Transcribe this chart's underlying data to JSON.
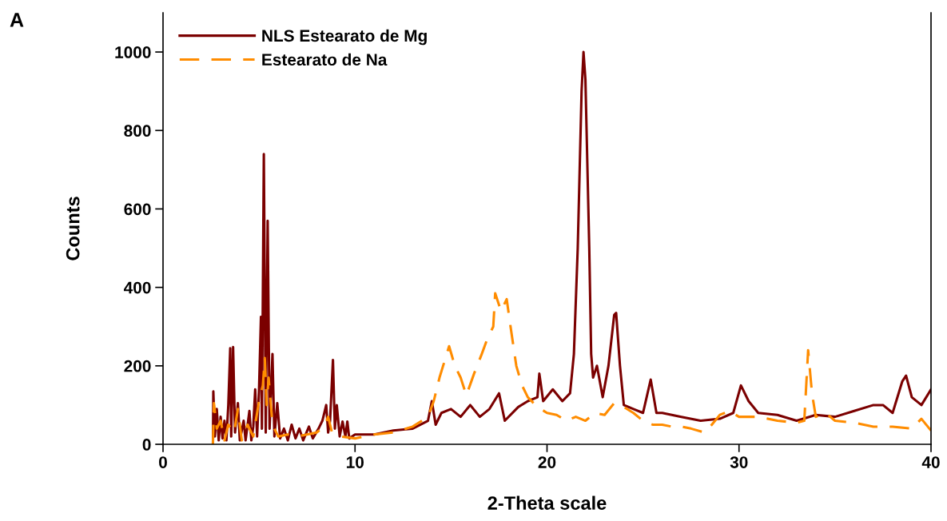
{
  "chart_data": {
    "type": "line",
    "xlabel": "2-Theta scale",
    "ylabel": "Counts",
    "annotations": [
      "A"
    ],
    "xlim": [
      0,
      40
    ],
    "xticks": [
      0,
      10,
      20,
      30,
      40
    ],
    "ylim": [
      0,
      1100
    ],
    "yticks": [
      0,
      200,
      400,
      600,
      800,
      1000
    ],
    "grid": false,
    "legend": "top left",
    "marker": "none",
    "series": [
      {
        "name": "NLS Estearato de Mg",
        "color": "#7b0000",
        "line_style": "solid",
        "x": [
          2.6,
          2.62,
          2.7,
          2.8,
          2.9,
          3.0,
          3.1,
          3.2,
          3.3,
          3.4,
          3.5,
          3.55,
          3.65,
          3.75,
          3.9,
          4.0,
          4.2,
          4.3,
          4.5,
          4.6,
          4.7,
          4.8,
          4.9,
          5.0,
          5.1,
          5.15,
          5.25,
          5.35,
          5.45,
          5.55,
          5.7,
          5.8,
          5.95,
          6.1,
          6.3,
          6.5,
          6.7,
          6.9,
          7.1,
          7.3,
          7.6,
          7.8,
          8.1,
          8.3,
          8.5,
          8.6,
          8.7,
          8.85,
          8.95,
          9.05,
          9.2,
          9.35,
          9.5,
          9.6,
          9.7,
          10,
          11,
          12,
          13,
          13.8,
          14.0,
          14.2,
          14.5,
          15,
          15.5,
          16,
          16.5,
          17,
          17.5,
          17.8,
          18.5,
          19.0,
          19.5,
          19.6,
          19.8,
          20.3,
          20.8,
          21.2,
          21.4,
          21.6,
          21.8,
          21.9,
          22.0,
          22.2,
          22.3,
          22.4,
          22.6,
          22.9,
          23.2,
          23.5,
          23.6,
          23.8,
          24.0,
          24.5,
          25.0,
          25.4,
          25.7,
          26,
          27,
          28,
          29,
          29.7,
          30.1,
          30.5,
          31,
          32,
          33,
          34,
          35,
          36,
          37,
          37.5,
          38.0,
          38.5,
          38.7,
          39,
          39.5,
          40
        ],
        "values": [
          0,
          135,
          20,
          90,
          10,
          70,
          15,
          60,
          10,
          100,
          245,
          20,
          248,
          30,
          105,
          10,
          60,
          10,
          85,
          10,
          45,
          140,
          20,
          140,
          325,
          40,
          740,
          30,
          570,
          40,
          230,
          20,
          105,
          15,
          40,
          10,
          50,
          15,
          40,
          10,
          45,
          15,
          40,
          60,
          100,
          30,
          60,
          215,
          40,
          100,
          20,
          58,
          20,
          58,
          15,
          25,
          25,
          35,
          40,
          60,
          110,
          50,
          80,
          90,
          70,
          100,
          70,
          90,
          130,
          60,
          95,
          110,
          120,
          180,
          110,
          140,
          110,
          130,
          230,
          500,
          900,
          1000,
          930,
          500,
          230,
          170,
          200,
          120,
          200,
          330,
          335,
          200,
          100,
          90,
          80,
          165,
          80,
          80,
          70,
          60,
          65,
          80,
          150,
          110,
          80,
          75,
          60,
          75,
          70,
          85,
          100,
          100,
          80,
          160,
          175,
          120,
          100,
          140
        ]
      },
      {
        "name": "Estearato de Na",
        "color": "#ff8c00",
        "line_style": "dashed",
        "x": [
          2.6,
          2.65,
          2.8,
          3.0,
          3.2,
          3.4,
          3.7,
          3.9,
          4.1,
          4.4,
          4.7,
          5.0,
          5.2,
          5.3,
          5.4,
          5.5,
          5.7,
          6.0,
          6.5,
          7,
          7.5,
          8,
          8.4,
          8.6,
          8.8,
          9.2,
          10,
          11,
          12,
          13,
          13.8,
          14.1,
          14.4,
          14.9,
          15.2,
          15.5,
          15.8,
          16.2,
          16.6,
          16.9,
          17.2,
          17.3,
          17.6,
          17.9,
          18.1,
          18.4,
          18.7,
          19.0,
          19.5,
          20,
          20.5,
          21,
          21.5,
          22,
          22.5,
          23,
          23.5,
          24,
          24.5,
          25,
          25.5,
          26,
          26.5,
          27,
          27.5,
          28.2,
          28.5,
          29,
          29.5,
          30,
          31,
          32,
          33,
          33.4,
          33.6,
          33.8,
          34,
          34.5,
          35,
          36,
          37,
          38,
          39,
          39.5,
          40
        ],
        "values": [
          0,
          105,
          40,
          60,
          10,
          50,
          30,
          90,
          10,
          50,
          20,
          110,
          150,
          220,
          100,
          170,
          50,
          20,
          25,
          20,
          25,
          30,
          45,
          70,
          30,
          20,
          15,
          25,
          30,
          45,
          70,
          110,
          170,
          250,
          200,
          170,
          125,
          180,
          230,
          270,
          300,
          385,
          340,
          370,
          300,
          200,
          150,
          120,
          95,
          80,
          75,
          60,
          70,
          60,
          80,
          75,
          105,
          95,
          80,
          60,
          50,
          50,
          45,
          45,
          40,
          30,
          45,
          75,
          85,
          70,
          70,
          60,
          55,
          60,
          240,
          130,
          70,
          80,
          60,
          55,
          45,
          45,
          40,
          65,
          35
        ]
      }
    ]
  }
}
